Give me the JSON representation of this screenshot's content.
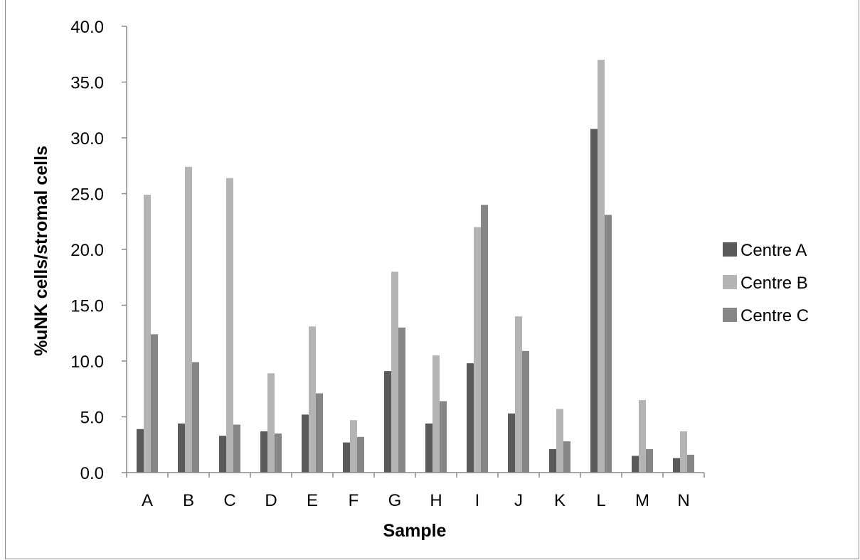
{
  "chart_data": {
    "type": "bar",
    "title": "",
    "xlabel": "Sample",
    "ylabel": "%uNK cells/stromal cells",
    "ylim": [
      0,
      40
    ],
    "ytick_step": 5,
    "ytick_labels": [
      "0.0",
      "5.0",
      "10.0",
      "15.0",
      "20.0",
      "25.0",
      "30.0",
      "35.0",
      "40.0"
    ],
    "grid": false,
    "legend_position": "right",
    "categories": [
      "A",
      "B",
      "C",
      "D",
      "E",
      "F",
      "G",
      "H",
      "I",
      "J",
      "K",
      "L",
      "M",
      "N"
    ],
    "series": [
      {
        "name": "Centre A",
        "color": "#5a5a5a",
        "values": [
          3.9,
          4.4,
          3.3,
          3.7,
          5.2,
          2.7,
          9.1,
          4.4,
          9.8,
          5.3,
          2.1,
          30.8,
          1.5,
          1.3
        ]
      },
      {
        "name": "Centre B",
        "color": "#b4b4b4",
        "values": [
          24.9,
          27.4,
          26.4,
          8.9,
          13.1,
          4.7,
          18.0,
          10.5,
          22.0,
          14.0,
          5.7,
          37.0,
          6.5,
          3.7
        ]
      },
      {
        "name": "Centre C",
        "color": "#868686",
        "values": [
          12.4,
          9.9,
          4.3,
          3.5,
          7.1,
          3.2,
          13.0,
          6.4,
          24.0,
          10.9,
          2.8,
          23.1,
          2.1,
          1.6
        ]
      }
    ]
  }
}
